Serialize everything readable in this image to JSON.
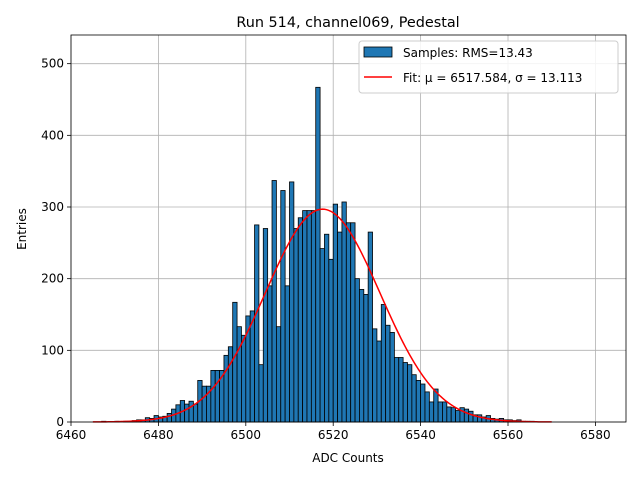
{
  "chart_data": {
    "type": "bar",
    "title": "Run 514, channel069, Pedestal",
    "xlabel": "ADC Counts",
    "ylabel": "Entries",
    "xlim": [
      6460,
      6587
    ],
    "ylim": [
      0,
      540
    ],
    "xticks": [
      6460,
      6480,
      6500,
      6520,
      6540,
      6560,
      6580
    ],
    "yticks": [
      0,
      100,
      200,
      300,
      400,
      500
    ],
    "grid": true,
    "legend_position": "top-right",
    "bin_width": 1,
    "histogram": {
      "name": "Samples: RMS=13.43",
      "color": "#1f77b4",
      "edgecolor": "#000000",
      "bins": [
        6466,
        6467,
        6468,
        6469,
        6470,
        6471,
        6472,
        6473,
        6474,
        6475,
        6476,
        6477,
        6478,
        6479,
        6480,
        6481,
        6482,
        6483,
        6484,
        6485,
        6486,
        6487,
        6488,
        6489,
        6490,
        6491,
        6492,
        6493,
        6494,
        6495,
        6496,
        6497,
        6498,
        6499,
        6500,
        6501,
        6502,
        6503,
        6504,
        6505,
        6506,
        6507,
        6508,
        6509,
        6510,
        6511,
        6512,
        6513,
        6514,
        6515,
        6516,
        6517,
        6518,
        6519,
        6520,
        6521,
        6522,
        6523,
        6524,
        6525,
        6526,
        6527,
        6528,
        6529,
        6530,
        6531,
        6532,
        6533,
        6534,
        6535,
        6536,
        6537,
        6538,
        6539,
        6540,
        6541,
        6542,
        6543,
        6544,
        6545,
        6546,
        6547,
        6548,
        6549,
        6550,
        6551,
        6552,
        6553,
        6554,
        6555,
        6556,
        6557,
        6558,
        6559,
        6560,
        6561,
        6562,
        6563,
        6564,
        6565,
        6566,
        6567,
        6568
      ],
      "values": [
        0,
        1,
        0,
        0,
        1,
        0,
        1,
        1,
        2,
        3,
        3,
        6,
        5,
        9,
        7,
        8,
        12,
        18,
        24,
        30,
        25,
        29,
        25,
        58,
        50,
        50,
        72,
        72,
        72,
        93,
        105,
        167,
        133,
        121,
        148,
        155,
        275,
        80,
        270,
        190,
        337,
        133,
        323,
        190,
        335,
        270,
        285,
        295,
        295,
        295,
        467,
        242,
        262,
        227,
        304,
        265,
        307,
        278,
        278,
        200,
        185,
        178,
        265,
        130,
        113,
        164,
        135,
        125,
        90,
        90,
        83,
        80,
        66,
        58,
        53,
        42,
        28,
        46,
        28,
        28,
        21,
        20,
        16,
        20,
        18,
        15,
        10,
        10,
        7,
        9,
        5,
        4,
        5,
        3,
        3,
        2,
        3,
        1,
        1,
        1,
        0,
        0,
        0
      ]
    },
    "fit": {
      "name": "Fit: μ = 6517.584, σ = 13.113",
      "mu": 6517.584,
      "sigma": 13.113,
      "amplitude": 297,
      "x_range": [
        6465,
        6570
      ],
      "color": "#ff0000"
    }
  }
}
